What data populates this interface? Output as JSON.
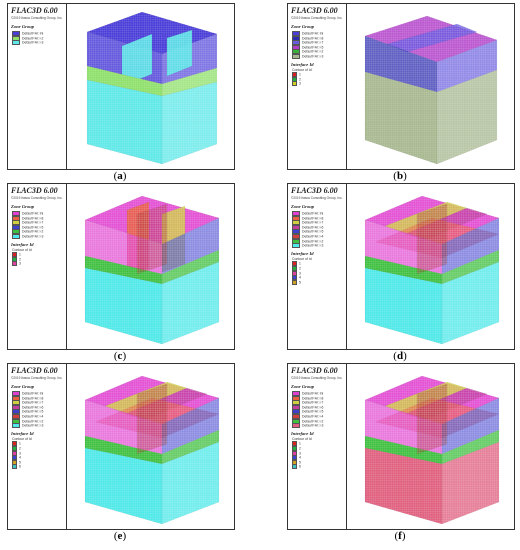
{
  "software_title": "FLAC3D 6.00",
  "copyright": "©2019 Itasca Consulting Group, Inc.",
  "zone_group_heading": "Zone Group",
  "interface_heading": "Interface Id",
  "interface_sub": "Contour of Id",
  "panels": [
    {
      "caption": "a",
      "zones": [
        {
          "label": "Default=Al: Ini",
          "color": "#4a3dd8"
        },
        {
          "label": "Default=Al: i-2",
          "color": "#8ee06a"
        },
        {
          "label": "Default=Al: i-3",
          "color": "#5fe8e8"
        }
      ],
      "interfaces": []
    },
    {
      "caption": "b",
      "zones": [
        {
          "label": "Default=Al: Ini",
          "color": "#4a3dd8"
        },
        {
          "label": "Default=Al: i-8",
          "color": "#2b2bb0"
        },
        {
          "label": "Default=Al: i-7",
          "color": "#6a5ae0"
        },
        {
          "label": "Default=Al: i-5",
          "color": "#b03cc8"
        },
        {
          "label": "Default=Al: i-2",
          "color": "#3cb03c"
        },
        {
          "label": "Default=Al: i-3",
          "color": "#a8b890"
        }
      ],
      "interfaces": [
        {
          "label": "1",
          "color": "#e02020"
        },
        {
          "label": "2",
          "color": "#20b040"
        },
        {
          "label": "3",
          "color": "#d0d020"
        }
      ]
    },
    {
      "caption": "c",
      "zones": [
        {
          "label": "Default=Al: Ini",
          "color": "#e040d0"
        },
        {
          "label": "Default=Al: i-8",
          "color": "#e86040"
        },
        {
          "label": "Default=Al: i-7",
          "color": "#d0d040"
        },
        {
          "label": "Default=Al: i-5",
          "color": "#4040d0"
        },
        {
          "label": "Default=Al: i-2",
          "color": "#40c040"
        },
        {
          "label": "Default=Al: i-3",
          "color": "#50e8e8"
        }
      ],
      "interfaces": [
        {
          "label": "1",
          "color": "#e02020"
        },
        {
          "label": "2",
          "color": "#20b040"
        },
        {
          "label": "3",
          "color": "#e040a0"
        }
      ]
    },
    {
      "caption": "d",
      "zones": [
        {
          "label": "Default=Al: Ini",
          "color": "#e040d0"
        },
        {
          "label": "Default=Al: i-8",
          "color": "#e86040"
        },
        {
          "label": "Default=Al: i-7",
          "color": "#d0d040"
        },
        {
          "label": "Default=Al: i-6",
          "color": "#c040a0"
        },
        {
          "label": "Default=Al: i-5",
          "color": "#4040d0"
        },
        {
          "label": "Default=Al: i-4",
          "color": "#d04040"
        },
        {
          "label": "Default=Al: i-2",
          "color": "#40c040"
        },
        {
          "label": "Default=Al: i-3",
          "color": "#50e8e8"
        }
      ],
      "interfaces": [
        {
          "label": "1",
          "color": "#e02020"
        },
        {
          "label": "2",
          "color": "#20b040"
        },
        {
          "label": "3",
          "color": "#e040a0"
        },
        {
          "label": "4",
          "color": "#4040d0"
        },
        {
          "label": "5",
          "color": "#d0a020"
        }
      ]
    },
    {
      "caption": "e",
      "zones": [
        {
          "label": "Default=Al: Ini",
          "color": "#e040d0"
        },
        {
          "label": "Default=Al: i-8",
          "color": "#e86040"
        },
        {
          "label": "Default=Al: i-7",
          "color": "#d0d040"
        },
        {
          "label": "Default=Al: i-6",
          "color": "#c040a0"
        },
        {
          "label": "Default=Al: i-5",
          "color": "#4040d0"
        },
        {
          "label": "Default=Al: i-4",
          "color": "#d04040"
        },
        {
          "label": "Default=Al: i-2",
          "color": "#40c040"
        },
        {
          "label": "Default=Al: i-3",
          "color": "#50e8e8"
        }
      ],
      "interfaces": [
        {
          "label": "1",
          "color": "#e02020"
        },
        {
          "label": "2",
          "color": "#20b040"
        },
        {
          "label": "3",
          "color": "#e040a0"
        },
        {
          "label": "4",
          "color": "#4040d0"
        },
        {
          "label": "5",
          "color": "#d0a020"
        },
        {
          "label": "6",
          "color": "#40c0c0"
        }
      ]
    },
    {
      "caption": "f",
      "zones": [
        {
          "label": "Default=Al: Ini",
          "color": "#e040d0"
        },
        {
          "label": "Default=Al: i-8",
          "color": "#e86040"
        },
        {
          "label": "Default=Al: i-7",
          "color": "#d0d040"
        },
        {
          "label": "Default=Al: i-6",
          "color": "#c040a0"
        },
        {
          "label": "Default=Al: i-5",
          "color": "#4040d0"
        },
        {
          "label": "Default=Al: i-4",
          "color": "#d04040"
        },
        {
          "label": "Default=Al: i-2",
          "color": "#40c040"
        },
        {
          "label": "Default=Al: i-3",
          "color": "#e06080"
        }
      ],
      "interfaces": [
        {
          "label": "1",
          "color": "#e02020"
        },
        {
          "label": "2",
          "color": "#20b040"
        },
        {
          "label": "3",
          "color": "#e040a0"
        },
        {
          "label": "4",
          "color": "#4040d0"
        },
        {
          "label": "5",
          "color": "#d0a020"
        },
        {
          "label": "6",
          "color": "#40c0c0"
        }
      ]
    }
  ]
}
